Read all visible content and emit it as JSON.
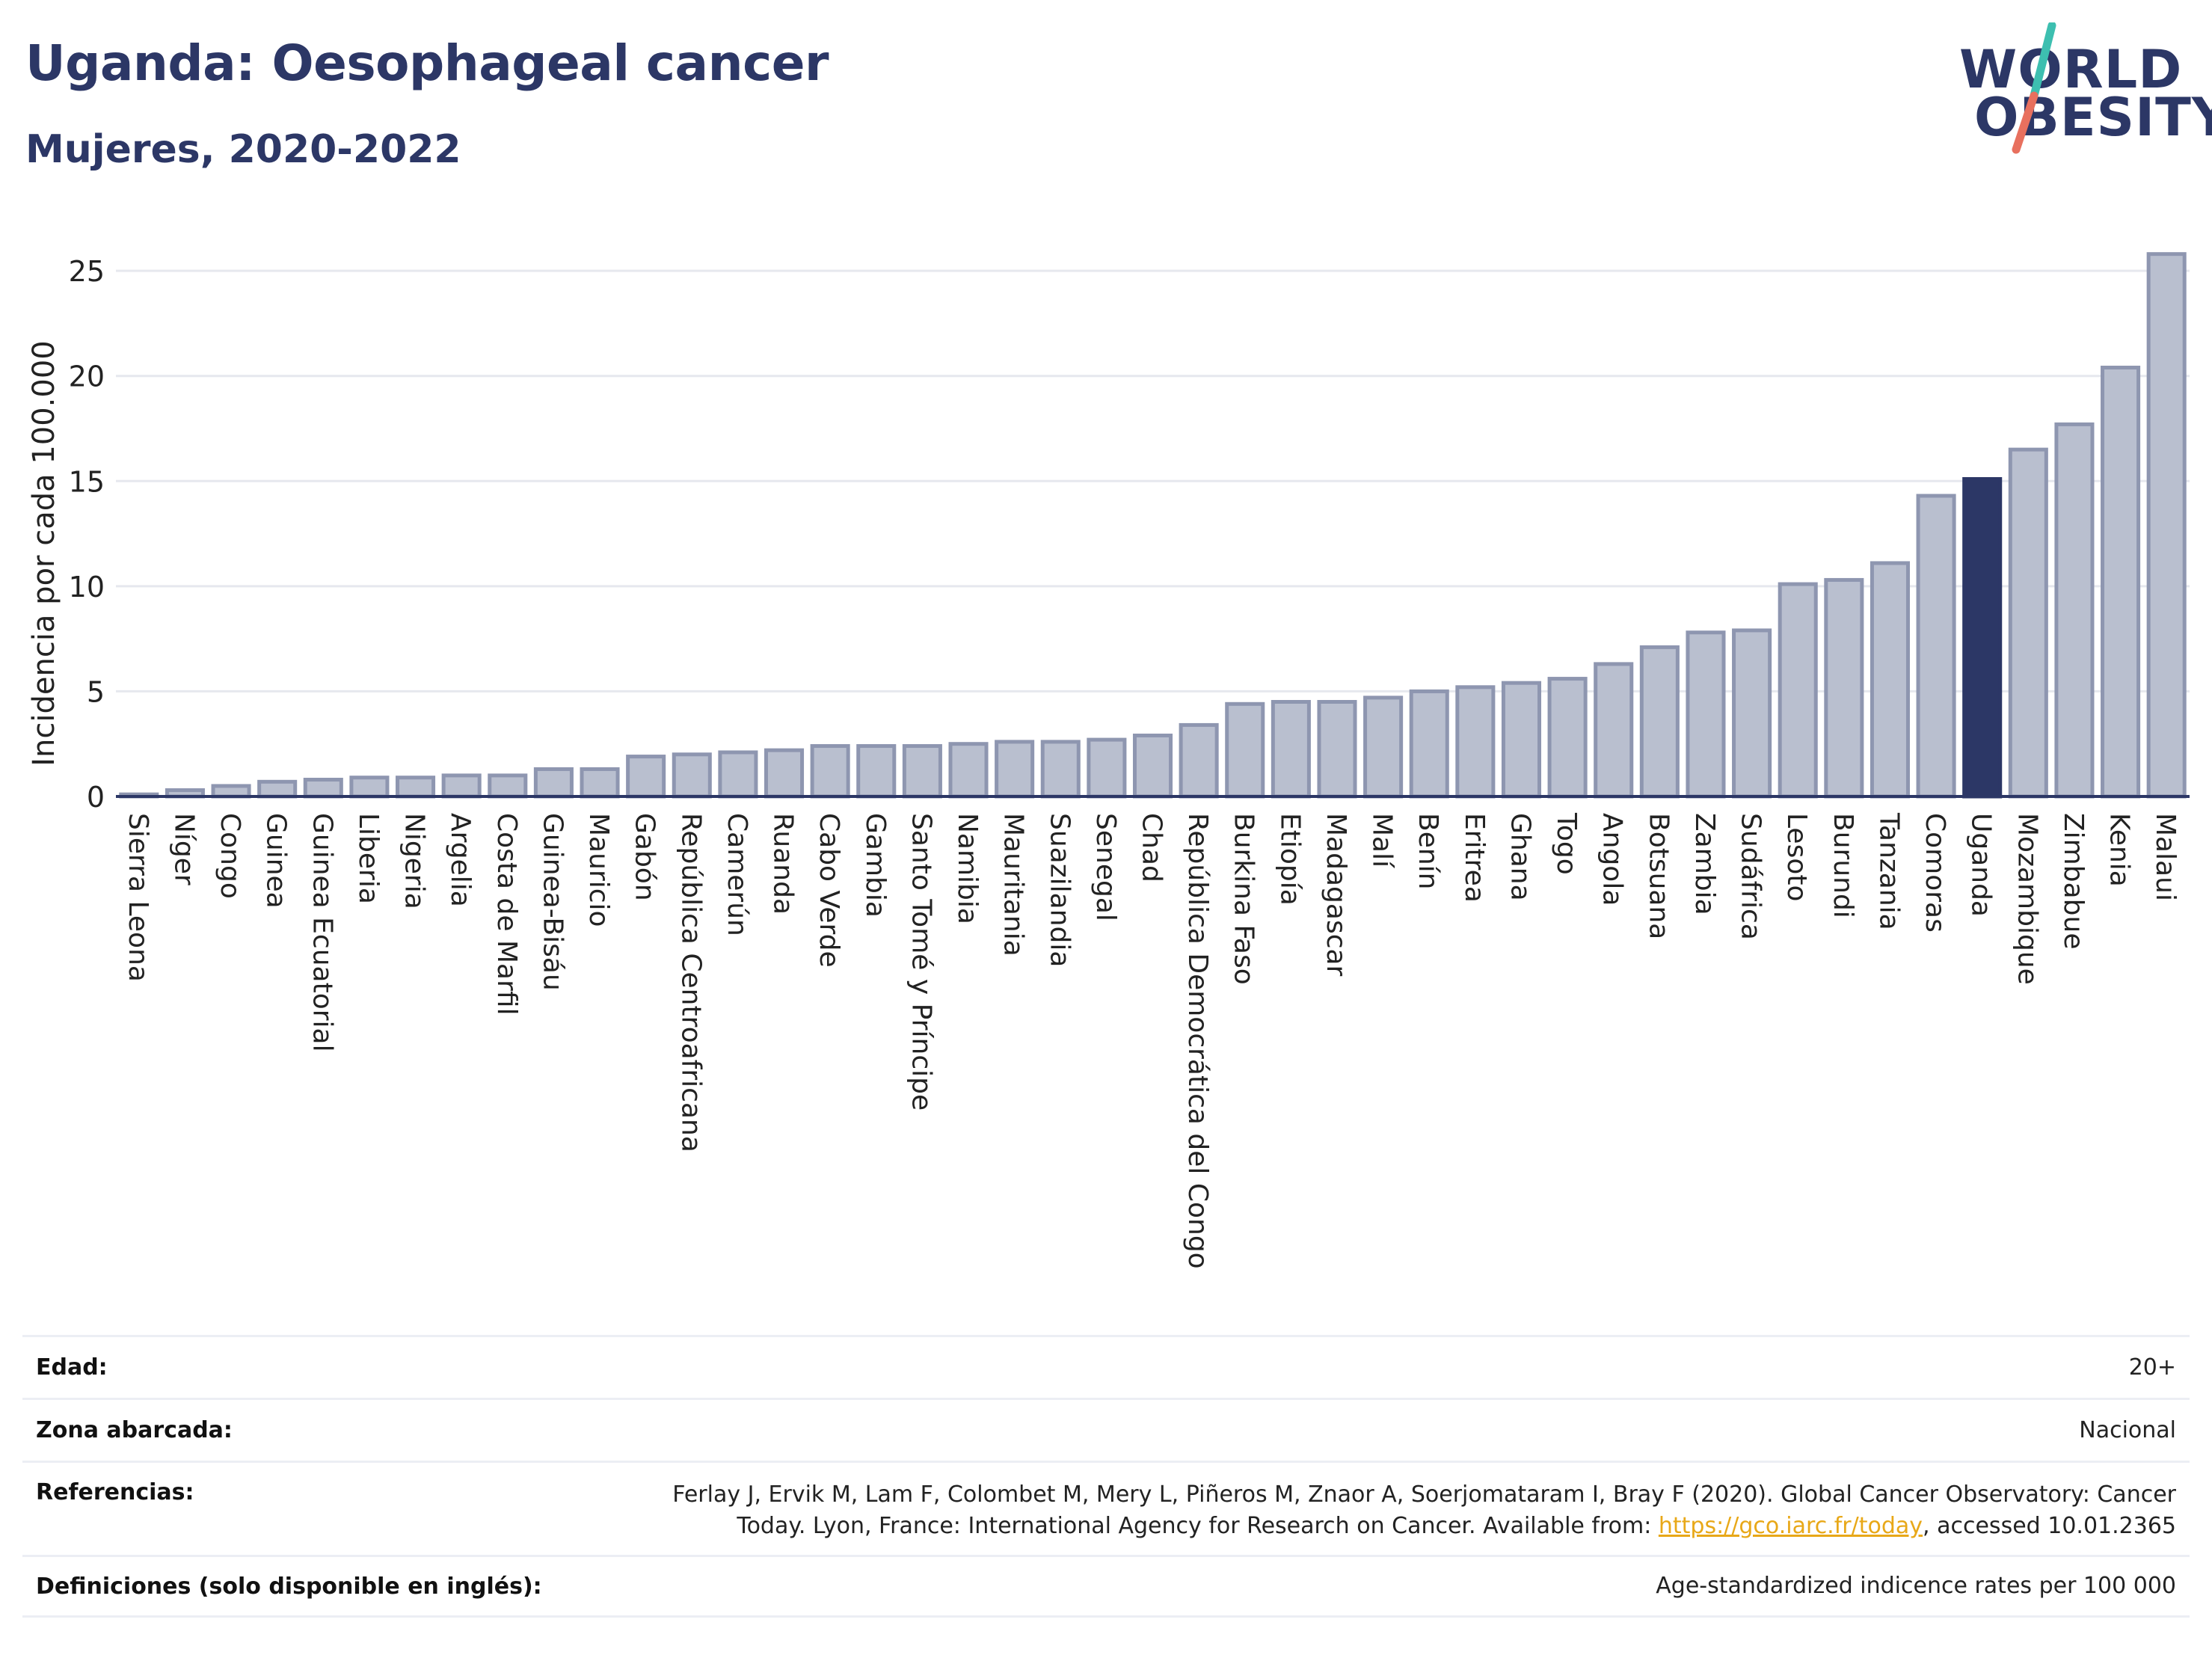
{
  "header": {
    "title": "Uganda: Oesophageal cancer",
    "subtitle": "Mujeres, 2020-2022"
  },
  "logo": {
    "line1": "WORLD",
    "line2": "OBESITY",
    "accent_teal": "#3dbfb0",
    "accent_coral": "#e8705e"
  },
  "colors": {
    "bar": "#b9bfcf",
    "bar_border": "#8e96b0",
    "highlight": "#2c3766",
    "axis": "#2c3766",
    "grid": "#e6e8ee"
  },
  "chart_data": {
    "type": "bar",
    "ylabel": "Incidencia por cada 100.000",
    "ylim": [
      0,
      26.5
    ],
    "yticks": [
      0,
      5,
      10,
      15,
      20,
      25
    ],
    "grid": true,
    "highlight": "Uganda",
    "categories": [
      "Sierra Leona",
      "Níger",
      "Congo",
      "Guinea",
      "Guinea Ecuatorial",
      "Liberia",
      "Nigeria",
      "Argelia",
      "Costa de Marfil",
      "Guinea-Bisáu",
      "Mauricio",
      "Gabón",
      "República Centroafricana",
      "Camerún",
      "Ruanda",
      "Cabo Verde",
      "Gambia",
      "Santo Tomé y Príncipe",
      "Namibia",
      "Mauritania",
      "Suazilandia",
      "Senegal",
      "Chad",
      "República Democrática del Congo",
      "Burkina Faso",
      "Etiopía",
      "Madagascar",
      "Malí",
      "Benín",
      "Eritrea",
      "Ghana",
      "Togo",
      "Angola",
      "Botsuana",
      "Zambia",
      "Sudáfrica",
      "Lesoto",
      "Burundi",
      "Tanzania",
      "Comoras",
      "Uganda",
      "Mozambique",
      "Zimbabue",
      "Kenia",
      "Malaui"
    ],
    "values": [
      0.1,
      0.3,
      0.5,
      0.7,
      0.8,
      0.9,
      0.9,
      1.0,
      1.0,
      1.3,
      1.3,
      1.9,
      2.0,
      2.1,
      2.2,
      2.4,
      2.4,
      2.4,
      2.5,
      2.6,
      2.6,
      2.7,
      2.9,
      3.4,
      4.4,
      4.5,
      4.5,
      4.7,
      5.0,
      5.2,
      5.4,
      5.6,
      6.3,
      7.1,
      7.8,
      7.9,
      10.1,
      10.3,
      11.1,
      14.3,
      15.1,
      16.5,
      17.7,
      20.4,
      25.8
    ]
  },
  "meta": [
    {
      "label": "Edad:",
      "value": "20+"
    },
    {
      "label": "Zona abarcada:",
      "value": "Nacional"
    },
    {
      "label": "Referencias:",
      "value_line1": "Ferlay J, Ervik M, Lam F, Colombet M, Mery L, Piñeros M, Znaor A, Soerjomataram I, Bray F (2020). Global Cancer Observatory: Cancer",
      "value_pre_link": "Today. Lyon, France: International Agency for Research on Cancer. Available from: ",
      "link": "https://gco.iarc.fr/today",
      "value_post_link": ", accessed 10.01.2365"
    },
    {
      "label": "Definiciones (solo disponible en inglés):",
      "value": "Age-standardized indicence rates per 100 000"
    }
  ]
}
